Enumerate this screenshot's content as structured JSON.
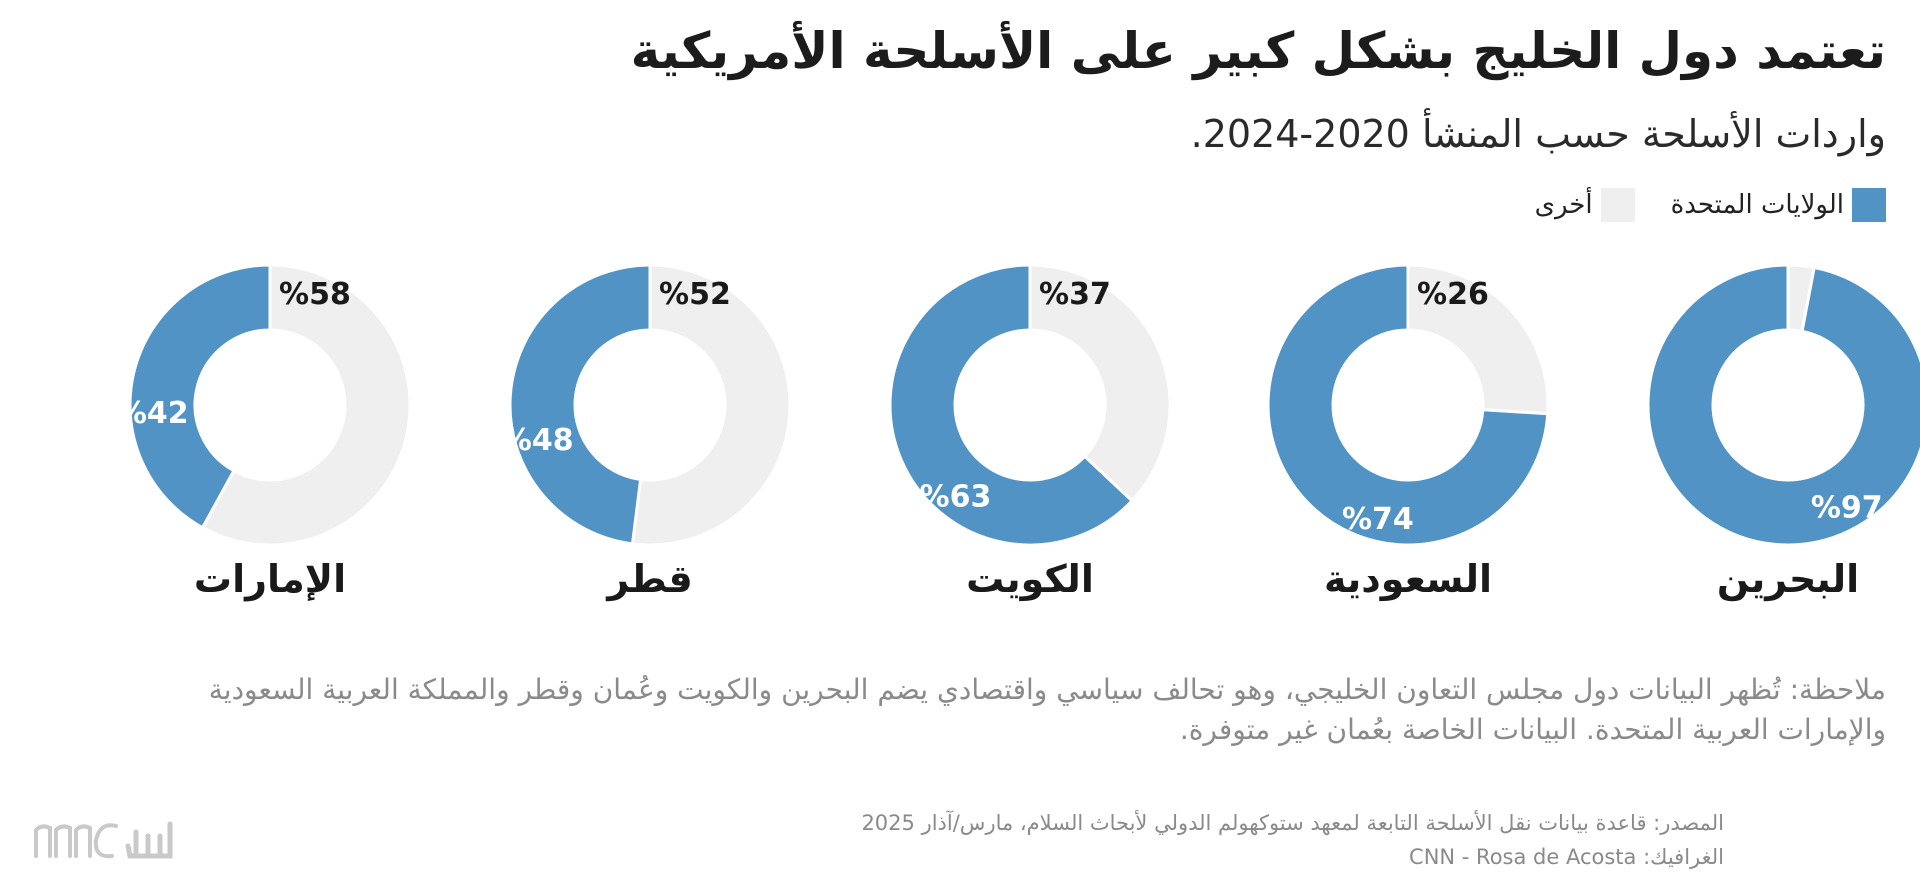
{
  "title": "تعتمد دول الخليج بشكل كبير على الأسلحة الأمريكية",
  "subtitle": "واردات الأسلحة حسب المنشأ 2020-2024.",
  "colors": {
    "us": "#5093c4",
    "other": "#efefef"
  },
  "chart_data": {
    "type": "donut",
    "title": "تعتمد دول الخليج بشكل كبير على الأسلحة الأمريكية",
    "subtitle": "واردات الأسلحة حسب المنشأ 2020-2024.",
    "unit": "%",
    "legend": {
      "placement": "top-right",
      "entries": [
        "الولايات المتحدة",
        "أخرى"
      ]
    },
    "series": [
      {
        "name": "الولايات المتحدة",
        "color": "#5093c4"
      },
      {
        "name": "أخرى",
        "color": "#efefef"
      }
    ],
    "charts": [
      {
        "category": "البحرين",
        "us": 97,
        "other": 3,
        "us_label": "%97",
        "other_label": ""
      },
      {
        "category": "السعودية",
        "us": 74,
        "other": 26,
        "us_label": "%74",
        "other_label": "%26"
      },
      {
        "category": "الكويت",
        "us": 63,
        "other": 37,
        "us_label": "%63",
        "other_label": "%37"
      },
      {
        "category": "قطر",
        "us": 48,
        "other": 52,
        "us_label": "%48",
        "other_label": "%52"
      },
      {
        "category": "الإمارات",
        "us": 42,
        "other": 58,
        "us_label": "%42",
        "other_label": "%58"
      }
    ]
  },
  "note": "ملاحظة: تُظهر البيانات دول مجلس التعاون الخليجي، وهو تحالف سياسي واقتصادي يضم البحرين والكويت وعُمان وقطر والمملكة العربية السعودية والإمارات العربية المتحدة. البيانات الخاصة بعُمان غير متوفرة.",
  "source": {
    "line1": "المصدر: قاعدة بيانات نقل الأسلحة التابعة لمعهد ستوكهولم الدولي لأبحاث السلام، مارس/آذار 2025",
    "line2": "الغرافيك: CNN - Rosa de Acosta"
  },
  "logo": {
    "text": "CNN بالعربية"
  }
}
